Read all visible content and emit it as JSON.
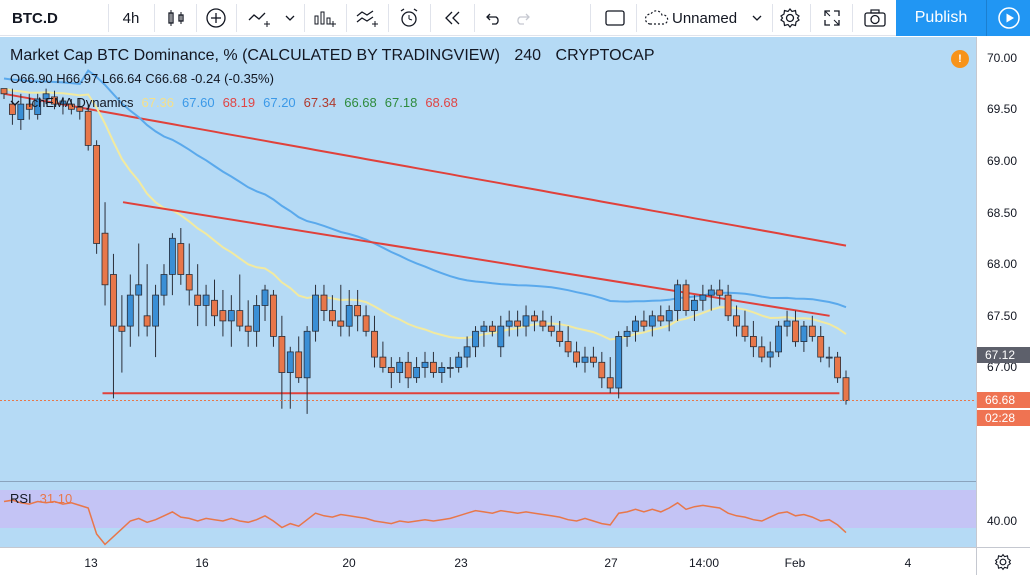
{
  "toolbar": {
    "symbol": "BTC.D",
    "interval": "4h",
    "layout_name": "Unnamed",
    "publish_label": "Publish",
    "icons": [
      "candles-icon",
      "add-indicator-icon",
      "compare-icon",
      "chevron-down-icon",
      "indicators-icon",
      "financials-icon",
      "alert-icon",
      "replay-icon",
      "undo-icon",
      "redo-icon",
      "fullscreen-icon",
      "layout-icon",
      "settings-icon",
      "expand-icon",
      "screenshot-icon",
      "play-icon"
    ]
  },
  "legend": {
    "title": "Market Cap BTC Dominance, % (CALCULATED BY TRADINGVIEW)",
    "interval": "240",
    "exchange": "CRYPTOCAP",
    "ohlc": {
      "o_label": "O",
      "o": "66.90",
      "h_label": "H",
      "h": "66.97",
      "l_label": "L",
      "l": "66.64",
      "c_label": "C",
      "c": "66.68",
      "change": "-0.24 (-0.35%)"
    },
    "indicator": {
      "name": "IchEMA Dynamics",
      "values": [
        "67.36",
        "67.60",
        "68.19",
        "67.20",
        "67.34",
        "66.68",
        "67.18",
        "68.68"
      ],
      "colors": [
        "#f5e08a",
        "#3b99e8",
        "#e04545",
        "#3b99e8",
        "#b03a2e",
        "#2e8b3d",
        "#2e8b3d",
        "#e04545"
      ]
    },
    "rsi": {
      "name": "RSI",
      "value": "31.10",
      "color": "#e8774a"
    }
  },
  "price_scale": {
    "ticks": [
      "70.00",
      "69.50",
      "69.00",
      "68.50",
      "68.00",
      "67.50",
      "67.00"
    ],
    "rsi_tick": "40.00",
    "labels": [
      {
        "text": "67.12",
        "bg": "#5d606b"
      },
      {
        "text": "66.68",
        "bg": "#ef7352"
      },
      {
        "text": "02:28",
        "bg": "#ef7352"
      }
    ]
  },
  "time_axis": {
    "ticks": [
      "13",
      "16",
      "20",
      "23",
      "27",
      "14:00",
      "Feb",
      "4"
    ]
  },
  "colors": {
    "chart_bg": "#b5daf5",
    "up_candle": "#3a8fd6",
    "down_candle": "#e8774a",
    "trendline": "#e0413b",
    "ema_fast": "#f2eaa0",
    "ema_mid": "#5aa9ec",
    "ema_slow": "#e0413b",
    "rsi_band": "#c4c4f5",
    "rsi_line": "#e8774a"
  },
  "chart_data": {
    "type": "candlestick",
    "price_axis": {
      "min": 65.9,
      "max": 70.2,
      "ticks": [
        67.0,
        67.5,
        68.0,
        68.5,
        69.0,
        69.5,
        70.0
      ]
    },
    "rsi_axis": {
      "tick": 40.0
    },
    "candles": [
      [
        69.7,
        69.7,
        69.6,
        69.65
      ],
      [
        69.55,
        69.7,
        69.35,
        69.45
      ],
      [
        69.4,
        69.65,
        69.3,
        69.55
      ],
      [
        69.55,
        69.65,
        69.4,
        69.5
      ],
      [
        69.45,
        69.65,
        69.4,
        69.6
      ],
      [
        69.6,
        69.7,
        69.55,
        69.65
      ],
      [
        69.62,
        69.68,
        69.5,
        69.55
      ],
      [
        69.55,
        69.62,
        69.45,
        69.58
      ],
      [
        69.55,
        69.6,
        69.45,
        69.5
      ],
      [
        69.52,
        69.6,
        69.4,
        69.48
      ],
      [
        69.48,
        69.55,
        69.1,
        69.15
      ],
      [
        69.15,
        69.2,
        68.1,
        68.2
      ],
      [
        68.3,
        68.6,
        67.6,
        67.8
      ],
      [
        67.9,
        68.1,
        66.7,
        67.4
      ],
      [
        67.4,
        67.7,
        66.95,
        67.35
      ],
      [
        67.4,
        67.9,
        67.2,
        67.7
      ],
      [
        67.7,
        68.2,
        67.3,
        67.8
      ],
      [
        67.5,
        68.0,
        67.3,
        67.4
      ],
      [
        67.4,
        67.8,
        67.1,
        67.7
      ],
      [
        67.7,
        68.0,
        67.6,
        67.9
      ],
      [
        67.9,
        68.3,
        67.7,
        68.25
      ],
      [
        68.2,
        68.35,
        67.8,
        67.9
      ],
      [
        67.9,
        68.2,
        67.6,
        67.75
      ],
      [
        67.7,
        68.0,
        67.4,
        67.6
      ],
      [
        67.6,
        67.8,
        67.4,
        67.7
      ],
      [
        67.65,
        67.85,
        67.4,
        67.5
      ],
      [
        67.55,
        67.75,
        67.3,
        67.45
      ],
      [
        67.45,
        67.7,
        67.2,
        67.55
      ],
      [
        67.55,
        67.9,
        67.35,
        67.4
      ],
      [
        67.4,
        67.65,
        67.2,
        67.35
      ],
      [
        67.35,
        67.7,
        67.2,
        67.6
      ],
      [
        67.6,
        67.8,
        67.45,
        67.75
      ],
      [
        67.7,
        67.75,
        67.2,
        67.3
      ],
      [
        67.3,
        67.5,
        66.6,
        66.95
      ],
      [
        66.95,
        67.2,
        66.6,
        67.15
      ],
      [
        67.15,
        67.3,
        66.85,
        66.9
      ],
      [
        66.9,
        67.4,
        66.55,
        67.35
      ],
      [
        67.35,
        67.8,
        67.25,
        67.7
      ],
      [
        67.7,
        67.8,
        67.45,
        67.55
      ],
      [
        67.55,
        67.7,
        67.4,
        67.45
      ],
      [
        67.45,
        67.8,
        67.3,
        67.4
      ],
      [
        67.4,
        67.75,
        67.3,
        67.6
      ],
      [
        67.6,
        67.75,
        67.35,
        67.5
      ],
      [
        67.5,
        67.6,
        67.3,
        67.35
      ],
      [
        67.35,
        67.5,
        67.0,
        67.1
      ],
      [
        67.1,
        67.25,
        66.95,
        67.0
      ],
      [
        67.0,
        67.1,
        66.8,
        66.95
      ],
      [
        66.95,
        67.1,
        66.85,
        67.05
      ],
      [
        67.05,
        67.15,
        66.8,
        66.9
      ],
      [
        66.9,
        67.1,
        66.85,
        67.0
      ],
      [
        67.0,
        67.15,
        66.9,
        67.05
      ],
      [
        67.05,
        67.15,
        66.9,
        66.95
      ],
      [
        66.95,
        67.05,
        66.85,
        67.0
      ],
      [
        67.0,
        67.1,
        66.9,
        67.0
      ],
      [
        67.0,
        67.15,
        66.95,
        67.1
      ],
      [
        67.1,
        67.3,
        67.0,
        67.2
      ],
      [
        67.2,
        67.4,
        67.1,
        67.35
      ],
      [
        67.35,
        67.45,
        67.2,
        67.4
      ],
      [
        67.4,
        67.45,
        67.3,
        67.35
      ],
      [
        67.2,
        67.5,
        67.1,
        67.4
      ],
      [
        67.4,
        67.55,
        67.3,
        67.45
      ],
      [
        67.45,
        67.55,
        67.3,
        67.4
      ],
      [
        67.4,
        67.6,
        67.3,
        67.5
      ],
      [
        67.5,
        67.55,
        67.35,
        67.45
      ],
      [
        67.45,
        67.55,
        67.35,
        67.4
      ],
      [
        67.4,
        67.5,
        67.3,
        67.35
      ],
      [
        67.35,
        67.45,
        67.2,
        67.25
      ],
      [
        67.25,
        67.4,
        67.1,
        67.15
      ],
      [
        67.15,
        67.25,
        67.0,
        67.05
      ],
      [
        67.05,
        67.2,
        66.95,
        67.1
      ],
      [
        67.1,
        67.2,
        67.0,
        67.05
      ],
      [
        67.05,
        67.15,
        66.8,
        66.9
      ],
      [
        66.9,
        67.1,
        66.75,
        66.8
      ],
      [
        66.8,
        67.35,
        66.7,
        67.3
      ],
      [
        67.3,
        67.4,
        67.2,
        67.35
      ],
      [
        67.35,
        67.5,
        67.25,
        67.45
      ],
      [
        67.45,
        67.55,
        67.35,
        67.4
      ],
      [
        67.4,
        67.55,
        67.3,
        67.5
      ],
      [
        67.5,
        67.6,
        67.4,
        67.45
      ],
      [
        67.45,
        67.6,
        67.35,
        67.55
      ],
      [
        67.55,
        67.85,
        67.45,
        67.8
      ],
      [
        67.8,
        67.85,
        67.5,
        67.55
      ],
      [
        67.55,
        67.7,
        67.45,
        67.65
      ],
      [
        67.65,
        67.8,
        67.55,
        67.7
      ],
      [
        67.7,
        67.8,
        67.55,
        67.75
      ],
      [
        67.75,
        67.85,
        67.6,
        67.7
      ],
      [
        67.7,
        67.8,
        67.45,
        67.5
      ],
      [
        67.5,
        67.6,
        67.3,
        67.4
      ],
      [
        67.4,
        67.55,
        67.25,
        67.3
      ],
      [
        67.3,
        67.45,
        67.1,
        67.2
      ],
      [
        67.2,
        67.3,
        67.05,
        67.1
      ],
      [
        67.1,
        67.25,
        67.0,
        67.15
      ],
      [
        67.15,
        67.45,
        67.1,
        67.4
      ],
      [
        67.4,
        67.55,
        67.3,
        67.45
      ],
      [
        67.45,
        67.55,
        67.2,
        67.25
      ],
      [
        67.25,
        67.45,
        67.15,
        67.4
      ],
      [
        67.4,
        67.5,
        67.25,
        67.3
      ],
      [
        67.3,
        67.4,
        67.05,
        67.1
      ],
      [
        67.1,
        67.2,
        67.0,
        67.1
      ],
      [
        67.1,
        67.15,
        66.85,
        66.9
      ],
      [
        66.9,
        66.97,
        66.64,
        66.68
      ]
    ],
    "trendlines": [
      {
        "name": "descending-resistance",
        "from": [
          68.6,
          0.126
        ],
        "to": [
          67.5,
          0.85
        ]
      },
      {
        "name": "horizontal-support",
        "from": [
          66.75,
          0.105
        ],
        "to": [
          66.75,
          0.86
        ]
      }
    ],
    "rsi_values": [
      55,
      56,
      54,
      53,
      55,
      54,
      55,
      53,
      54,
      52,
      50,
      30,
      22,
      28,
      34,
      40,
      42,
      39,
      41,
      44,
      47,
      43,
      42,
      40,
      42,
      41,
      40,
      42,
      40,
      39,
      41,
      44,
      40,
      35,
      38,
      36,
      41,
      46,
      44,
      43,
      45,
      44,
      43,
      42,
      40,
      39,
      38,
      40,
      39,
      40,
      41,
      40,
      41,
      42,
      44,
      46,
      48,
      47,
      46,
      48,
      47,
      46,
      47,
      46,
      45,
      44,
      43,
      41,
      40,
      42,
      40,
      38,
      37,
      46,
      47,
      49,
      47,
      49,
      47,
      50,
      54,
      49,
      51,
      52,
      51,
      50,
      46,
      44,
      43,
      41,
      40,
      43,
      46,
      47,
      44,
      45,
      43,
      40,
      41,
      37,
      31.1
    ]
  }
}
